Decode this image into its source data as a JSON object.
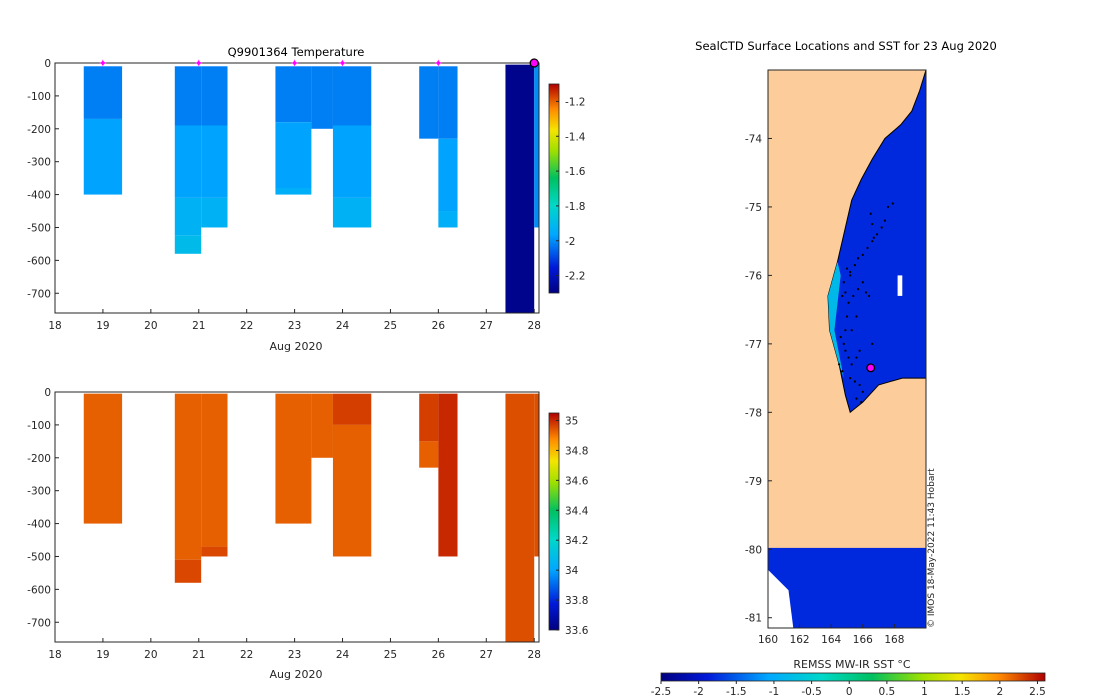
{
  "chart_data": [
    {
      "type": "heatmap",
      "title": "Q9901364  Temperature",
      "xlabel": "Aug 2020",
      "ylabel": "",
      "xlim": [
        18,
        28.1
      ],
      "ylim": [
        -760,
        0
      ],
      "xticks": [
        "18",
        "19",
        "20",
        "21",
        "22",
        "23",
        "24",
        "25",
        "26",
        "27",
        "28"
      ],
      "yticks": [
        "0",
        "-100",
        "-200",
        "-300",
        "-400",
        "-500",
        "-600",
        "-700"
      ],
      "colorbar": {
        "range": [
          -2.3,
          -1.1
        ],
        "ticks": [
          "-1.2",
          "-1.4",
          "-1.6",
          "-1.8",
          "-2",
          "-2.2"
        ]
      },
      "profile_markers_day": [
        19,
        21,
        23,
        24,
        26
      ],
      "last_marker_day": 28,
      "profiles": [
        {
          "x0": 18.6,
          "x1": 19.4,
          "cells": [
            [
              -10,
              -170,
              -2.02
            ],
            [
              -170,
              -400,
              -1.97
            ]
          ]
        },
        {
          "x0": 20.5,
          "x1": 21.05,
          "cells": [
            [
              -10,
              -190,
              -2.02
            ],
            [
              -190,
              -410,
              -1.97
            ],
            [
              -410,
              -525,
              -1.93
            ],
            [
              -525,
              -580,
              -1.9
            ]
          ]
        },
        {
          "x0": 21.05,
          "x1": 21.6,
          "cells": [
            [
              -10,
              -190,
              -2.02
            ],
            [
              -190,
              -410,
              -1.97
            ],
            [
              -410,
              -500,
              -1.93
            ]
          ]
        },
        {
          "x0": 22.6,
          "x1": 23.35,
          "cells": [
            [
              -10,
              -180,
              -2.02
            ],
            [
              -180,
              -380,
              -1.97
            ],
            [
              -380,
              -400,
              -1.94
            ]
          ]
        },
        {
          "x0": 23.35,
          "x1": 23.8,
          "cells": [
            [
              -10,
              -200,
              -2.02
            ]
          ]
        },
        {
          "x0": 23.8,
          "x1": 24.6,
          "cells": [
            [
              -10,
              -190,
              -2.02
            ],
            [
              -190,
              -410,
              -1.97
            ],
            [
              -410,
              -500,
              -1.93
            ]
          ]
        },
        {
          "x0": 25.6,
          "x1": 26.0,
          "cells": [
            [
              -10,
              -230,
              -2.02
            ]
          ]
        },
        {
          "x0": 26.0,
          "x1": 26.4,
          "cells": [
            [
              -10,
              -230,
              -2.02
            ],
            [
              -230,
              -450,
              -1.97
            ],
            [
              -450,
              -500,
              -1.94
            ]
          ]
        },
        {
          "x0": 27.4,
          "x1": 28.0,
          "cells": [
            [
              -5,
              -760,
              -2.28
            ]
          ]
        },
        {
          "x0": 28.0,
          "x1": 28.1,
          "cells": [
            [
              -5,
              -500,
              -2.0
            ]
          ]
        }
      ]
    },
    {
      "type": "heatmap",
      "title": "",
      "xlabel": "Aug 2020",
      "ylabel": "",
      "xlim": [
        18,
        28.1
      ],
      "ylim": [
        -760,
        0
      ],
      "xticks": [
        "18",
        "19",
        "20",
        "21",
        "22",
        "23",
        "24",
        "25",
        "26",
        "27",
        "28"
      ],
      "yticks": [
        "0",
        "-100",
        "-200",
        "-300",
        "-400",
        "-500",
        "-600",
        "-700"
      ],
      "colorbar": {
        "range": [
          33.6,
          35.05
        ],
        "ticks": [
          "35",
          "34.8",
          "34.6",
          "34.4",
          "34.2",
          "34",
          "33.8",
          "33.6"
        ]
      },
      "profiles": [
        {
          "x0": 18.6,
          "x1": 19.4,
          "cells": [
            [
              -5,
              -400,
              34.93
            ]
          ]
        },
        {
          "x0": 20.5,
          "x1": 21.05,
          "cells": [
            [
              -5,
              -510,
              34.93
            ],
            [
              -510,
              -580,
              34.96
            ]
          ]
        },
        {
          "x0": 21.05,
          "x1": 21.6,
          "cells": [
            [
              -5,
              -470,
              34.93
            ],
            [
              -470,
              -500,
              34.96
            ]
          ]
        },
        {
          "x0": 22.6,
          "x1": 23.35,
          "cells": [
            [
              -5,
              -400,
              34.93
            ]
          ]
        },
        {
          "x0": 23.35,
          "x1": 23.8,
          "cells": [
            [
              -5,
              -200,
              34.93
            ]
          ]
        },
        {
          "x0": 23.8,
          "x1": 24.6,
          "cells": [
            [
              -5,
              -100,
              34.97
            ],
            [
              -100,
              -500,
              34.93
            ]
          ]
        },
        {
          "x0": 25.6,
          "x1": 26.0,
          "cells": [
            [
              -5,
              -150,
              34.97
            ],
            [
              -150,
              -230,
              34.93
            ]
          ]
        },
        {
          "x0": 26.0,
          "x1": 26.4,
          "cells": [
            [
              -5,
              -500,
              35.0
            ]
          ]
        },
        {
          "x0": 27.4,
          "x1": 28.0,
          "cells": [
            [
              -5,
              -760,
              34.95
            ]
          ]
        },
        {
          "x0": 28.0,
          "x1": 28.1,
          "cells": [
            [
              -5,
              -500,
              34.95
            ]
          ]
        }
      ]
    },
    {
      "type": "heatmap",
      "title": "SealCTD Surface Locations and SST for 23 Aug 2020",
      "xlabel": "REMSS MW-IR SST °C",
      "xlim": [
        160,
        170
      ],
      "ylim": [
        -81.15,
        -73.0
      ],
      "xticks": [
        "160",
        "162",
        "164",
        "166",
        "168"
      ],
      "yticks": [
        "-74",
        "-75",
        "-76",
        "-77",
        "-78",
        "-79",
        "-80",
        "-81"
      ],
      "colorbar": {
        "range": [
          -2.5,
          2.6
        ],
        "ticks": [
          "-2.5",
          "-2",
          "-1.5",
          "-1",
          "-0.5",
          "0",
          "0.5",
          "1",
          "1.5",
          "2",
          "2.5"
        ]
      },
      "watermark": "© IMOS 18-May-2022 11:43 Hobart",
      "ocean_sst": -1.8,
      "current_location": [
        166.5,
        -77.35
      ],
      "seal_positions": [
        [
          165.0,
          -75.9
        ],
        [
          165.2,
          -75.95
        ],
        [
          165.5,
          -75.85
        ],
        [
          165.7,
          -75.75
        ],
        [
          166.0,
          -75.7
        ],
        [
          166.3,
          -75.6
        ],
        [
          166.6,
          -75.5
        ],
        [
          166.9,
          -75.4
        ],
        [
          167.2,
          -75.3
        ],
        [
          167.4,
          -75.2
        ],
        [
          167.6,
          -75.0
        ],
        [
          167.9,
          -74.95
        ],
        [
          166.5,
          -75.1
        ],
        [
          166.6,
          -75.25
        ],
        [
          166.7,
          -75.45
        ],
        [
          164.8,
          -76.1
        ],
        [
          164.9,
          -76.25
        ],
        [
          165.1,
          -76.4
        ],
        [
          165.0,
          -76.6
        ],
        [
          164.9,
          -76.8
        ],
        [
          164.8,
          -77.0
        ],
        [
          164.9,
          -77.1
        ],
        [
          165.1,
          -77.2
        ],
        [
          165.3,
          -77.3
        ],
        [
          165.6,
          -77.2
        ],
        [
          165.8,
          -77.1
        ],
        [
          165.4,
          -76.3
        ],
        [
          165.7,
          -76.2
        ],
        [
          166.0,
          -76.1
        ],
        [
          166.2,
          -76.25
        ],
        [
          166.4,
          -76.3
        ],
        [
          165.2,
          -77.5
        ],
        [
          165.5,
          -77.55
        ],
        [
          165.8,
          -77.6
        ],
        [
          166.0,
          -77.7
        ],
        [
          165.6,
          -77.8
        ],
        [
          165.9,
          -77.85
        ],
        [
          164.7,
          -77.4
        ],
        [
          164.5,
          -77.3
        ],
        [
          164.6,
          -76.9
        ],
        [
          165.3,
          -76.8
        ],
        [
          165.6,
          -76.6
        ],
        [
          166.6,
          -77.0
        ],
        [
          165.2,
          -76.0
        ],
        [
          164.7,
          -76.3
        ]
      ]
    }
  ]
}
